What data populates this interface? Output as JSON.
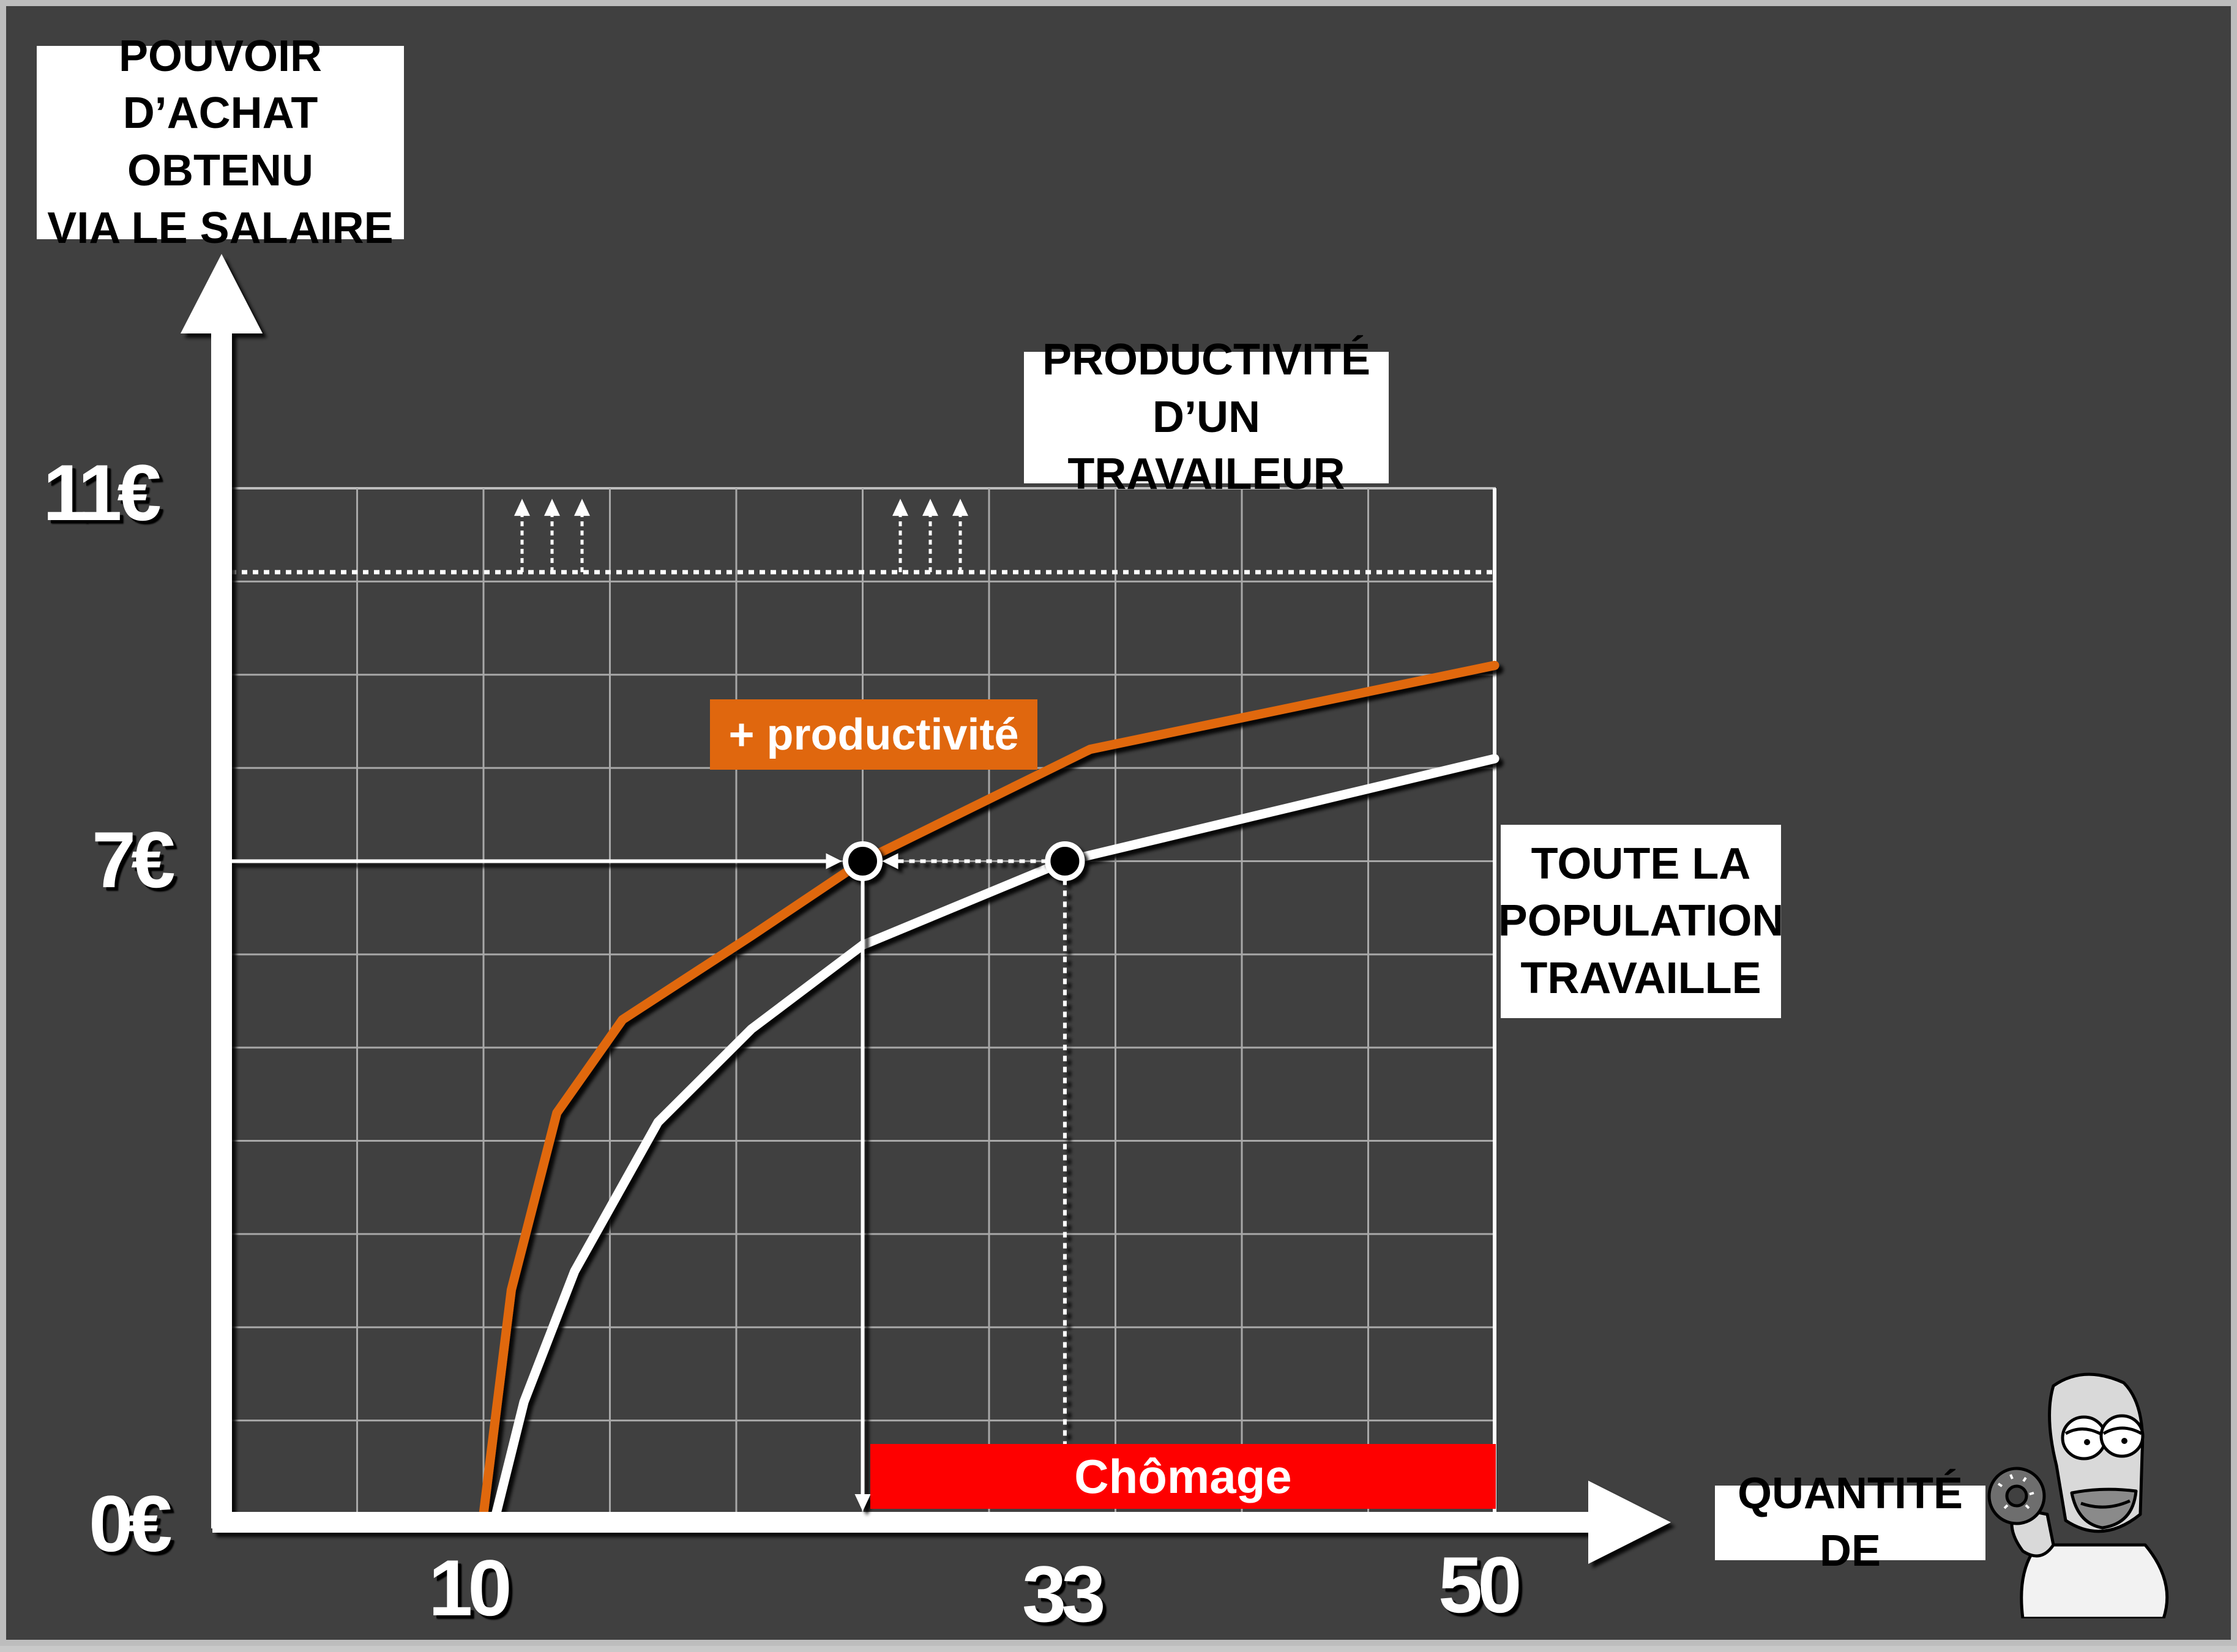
{
  "y_axis_title": [
    "POUVOIR",
    "D’ACHAT OBTENU",
    "VIA LE SALAIRE"
  ],
  "x_axis_title": "QUANTITÉ DE",
  "productivity_box": [
    "PRODUCTIVITÉ",
    "D’UN TRAVAILEUR"
  ],
  "full_employment_box": [
    "TOUTE LA",
    "POPULATION",
    "TRAVAILLE"
  ],
  "legend_label": "+ productivité",
  "unemployment_label": "Chômage",
  "colors": {
    "background": "#404040",
    "orange_curve": "#e0670e",
    "white_curve": "#ffffff",
    "unemployment": "#fe0000"
  },
  "icons": [
    "up-arrow-icon",
    "homer-donut-icon"
  ],
  "chart_data": {
    "type": "line",
    "xlim": [
      0,
      50
    ],
    "ylim": [
      0,
      11
    ],
    "x_ticks": [
      {
        "value": 10,
        "label": "10"
      },
      {
        "value": 33,
        "label": "33"
      },
      {
        "value": 50,
        "label": "50"
      }
    ],
    "y_ticks": [
      {
        "value": 0,
        "label": "0€"
      },
      {
        "value": 7,
        "label": "7€"
      },
      {
        "value": 11,
        "label": "11€"
      }
    ],
    "grid": true,
    "series": [
      {
        "name": "+ productivité",
        "color": "#e0670e",
        "points": [
          [
            10,
            0
          ],
          [
            11.1,
            2.4
          ],
          [
            12.9,
            4.3
          ],
          [
            15.5,
            5.3
          ],
          [
            20.6,
            6.2
          ],
          [
            25,
            7
          ],
          [
            34,
            8.2
          ],
          [
            50,
            9.1
          ]
        ]
      },
      {
        "color": "#ffffff",
        "points": [
          [
            10.5,
            0
          ],
          [
            11.6,
            1.2
          ],
          [
            13.6,
            2.6
          ],
          [
            16.9,
            4.2
          ],
          [
            20.6,
            5.2
          ],
          [
            25,
            6.1
          ],
          [
            33,
            7
          ],
          [
            50,
            8.1
          ]
        ]
      }
    ],
    "productivity_level": 10.1,
    "markers": [
      [
        25,
        7
      ],
      [
        33,
        7
      ]
    ],
    "unemployment_range": [
      25,
      50
    ]
  }
}
